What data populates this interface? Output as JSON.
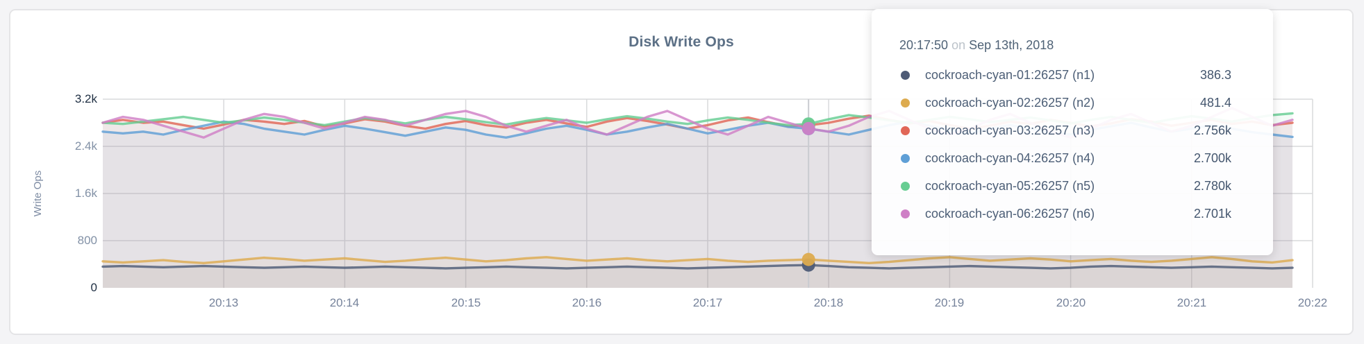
{
  "card": {
    "title": "Disk Write Ops"
  },
  "colors": {
    "grid": "#d9dadc",
    "hover_line": "#c9cbd0",
    "page_bg": "#f4f4f6",
    "card_bg": "#ffffff"
  },
  "chart_data": {
    "type": "area",
    "title": "Disk Write Ops",
    "xlabel": "",
    "ylabel": "Write Ops",
    "ylim": [
      0,
      3200
    ],
    "grid": true,
    "legend_position": "tooltip",
    "x_domain_seconds": [
      0,
      600
    ],
    "sample_interval_seconds": 10,
    "y_ticks": [
      {
        "label": "3.2k",
        "value": 3200,
        "emph": true
      },
      {
        "label": "2.4k",
        "value": 2400,
        "emph": false
      },
      {
        "label": "1.6k",
        "value": 1600,
        "emph": false
      },
      {
        "label": "800",
        "value": 800,
        "emph": false
      },
      {
        "label": "0",
        "value": 0,
        "emph": true
      }
    ],
    "x_ticks": [
      {
        "label": "20:13",
        "seconds": 60
      },
      {
        "label": "20:14",
        "seconds": 120
      },
      {
        "label": "20:15",
        "seconds": 180
      },
      {
        "label": "20:16",
        "seconds": 240
      },
      {
        "label": "20:17",
        "seconds": 300
      },
      {
        "label": "20:18",
        "seconds": 360
      },
      {
        "label": "20:19",
        "seconds": 420
      },
      {
        "label": "20:20",
        "seconds": 480
      },
      {
        "label": "20:21",
        "seconds": 540
      },
      {
        "label": "20:22",
        "seconds": 600
      }
    ],
    "hover": {
      "seconds": 350,
      "time_label": "20:17:50",
      "conjunction": "on",
      "date_label": "Sep 13th, 2018"
    },
    "series": [
      {
        "name": "cockroach-cyan-01:26257 (n1)",
        "short": "n1",
        "color": "#4e5b76",
        "hover_label": "386.3",
        "values": [
          360,
          370,
          360,
          350,
          360,
          370,
          360,
          350,
          340,
          350,
          360,
          350,
          340,
          350,
          360,
          350,
          340,
          330,
          340,
          350,
          360,
          350,
          340,
          330,
          340,
          350,
          360,
          350,
          340,
          330,
          340,
          350,
          360,
          370,
          380,
          386.3,
          370,
          350,
          340,
          330,
          340,
          350,
          360,
          370,
          360,
          350,
          340,
          330,
          340,
          360,
          370,
          360,
          350,
          340,
          350,
          360,
          350,
          340,
          330,
          340
        ]
      },
      {
        "name": "cockroach-cyan-02:26257 (n2)",
        "short": "n2",
        "color": "#ddab4f",
        "hover_label": "481.4",
        "values": [
          450,
          430,
          450,
          470,
          440,
          420,
          450,
          480,
          510,
          490,
          460,
          480,
          500,
          470,
          440,
          460,
          490,
          510,
          480,
          450,
          470,
          500,
          520,
          490,
          460,
          480,
          500,
          470,
          450,
          470,
          490,
          460,
          440,
          460,
          470,
          481.4,
          460,
          440,
          420,
          440,
          470,
          500,
          520,
          490,
          460,
          480,
          500,
          480,
          450,
          470,
          490,
          460,
          440,
          460,
          490,
          520,
          490,
          450,
          430,
          470
        ]
      },
      {
        "name": "cockroach-cyan-03:26257 (n3)",
        "short": "n3",
        "color": "#e16757",
        "hover_label": "2.756k",
        "values": [
          2800,
          2850,
          2800,
          2820,
          2760,
          2700,
          2770,
          2850,
          2820,
          2780,
          2830,
          2740,
          2790,
          2860,
          2820,
          2750,
          2700,
          2780,
          2830,
          2760,
          2720,
          2800,
          2850,
          2790,
          2730,
          2820,
          2880,
          2830,
          2770,
          2700,
          2760,
          2840,
          2890,
          2810,
          2740,
          2756,
          2800,
          2870,
          2920,
          2850,
          2790,
          2830,
          2760,
          2700,
          2750,
          2820,
          2780,
          2850,
          2800,
          2740,
          2790,
          2860,
          2820,
          2750,
          2800,
          2850,
          2780,
          2820,
          2760,
          2800
        ]
      },
      {
        "name": "cockroach-cyan-04:26257 (n4)",
        "short": "n4",
        "color": "#5f9fd6",
        "hover_label": "2.700k",
        "values": [
          2650,
          2620,
          2650,
          2600,
          2680,
          2750,
          2820,
          2780,
          2700,
          2650,
          2600,
          2680,
          2750,
          2700,
          2640,
          2580,
          2650,
          2720,
          2680,
          2600,
          2550,
          2620,
          2700,
          2750,
          2680,
          2600,
          2650,
          2720,
          2780,
          2700,
          2620,
          2680,
          2750,
          2800,
          2730,
          2700,
          2650,
          2600,
          2680,
          2760,
          2820,
          2750,
          2680,
          2620,
          2700,
          2760,
          2700,
          2640,
          2600,
          2680,
          2740,
          2800,
          2720,
          2650,
          2700,
          2760,
          2700,
          2640,
          2600,
          2560
        ]
      },
      {
        "name": "cockroach-cyan-05:26257 (n5)",
        "short": "n5",
        "color": "#67cd92",
        "hover_label": "2.780k",
        "values": [
          2800,
          2780,
          2820,
          2860,
          2900,
          2850,
          2800,
          2840,
          2890,
          2850,
          2800,
          2760,
          2820,
          2880,
          2840,
          2790,
          2850,
          2900,
          2860,
          2810,
          2770,
          2830,
          2880,
          2840,
          2800,
          2860,
          2910,
          2870,
          2820,
          2780,
          2840,
          2890,
          2850,
          2800,
          2760,
          2780,
          2860,
          2930,
          2890,
          2840,
          2800,
          2850,
          2900,
          2860,
          2810,
          2850,
          2890,
          2840,
          2790,
          2850,
          2900,
          2850,
          2800,
          2860,
          2910,
          2870,
          2820,
          2880,
          2930,
          2960
        ]
      },
      {
        "name": "cockroach-cyan-06:26257 (n6)",
        "short": "n6",
        "color": "#cf7fc6",
        "hover_label": "2.701k",
        "values": [
          2800,
          2900,
          2850,
          2750,
          2650,
          2550,
          2700,
          2850,
          2950,
          2900,
          2800,
          2700,
          2800,
          2900,
          2850,
          2750,
          2850,
          2950,
          3000,
          2900,
          2750,
          2650,
          2750,
          2850,
          2700,
          2600,
          2750,
          2900,
          3000,
          2850,
          2700,
          2600,
          2750,
          2900,
          2800,
          2701,
          2650,
          2750,
          2900,
          3000,
          2850,
          2700,
          2600,
          2700,
          2850,
          2950,
          2800,
          2650,
          2550,
          2700,
          2850,
          2950,
          2800,
          2650,
          2750,
          2900,
          3050,
          2900,
          2750,
          2850
        ]
      }
    ]
  }
}
